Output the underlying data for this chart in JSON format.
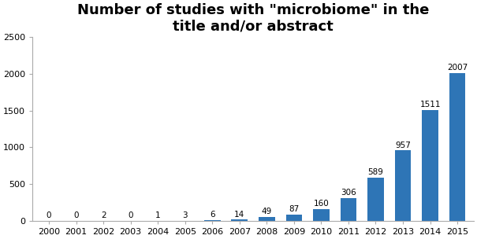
{
  "categories": [
    "2000",
    "2001",
    "2002",
    "2003",
    "2004",
    "2005",
    "2006",
    "2007",
    "2008",
    "2009",
    "2010",
    "2011",
    "2012",
    "2013",
    "2014",
    "2015"
  ],
  "values": [
    0,
    0,
    2,
    0,
    1,
    3,
    6,
    14,
    49,
    87,
    160,
    306,
    589,
    957,
    1511,
    2007
  ],
  "bar_color": "#2E75B6",
  "title": "Number of studies with \"microbiome\" in the\ntitle and/or abstract",
  "ylim": [
    0,
    2500
  ],
  "yticks": [
    0,
    500,
    1000,
    1500,
    2000,
    2500
  ],
  "title_fontsize": 13,
  "title_fontweight": "bold",
  "label_fontsize": 7.5,
  "tick_fontsize": 8,
  "background_color": "#ffffff",
  "bar_edge_color": "none",
  "bar_width": 0.6
}
